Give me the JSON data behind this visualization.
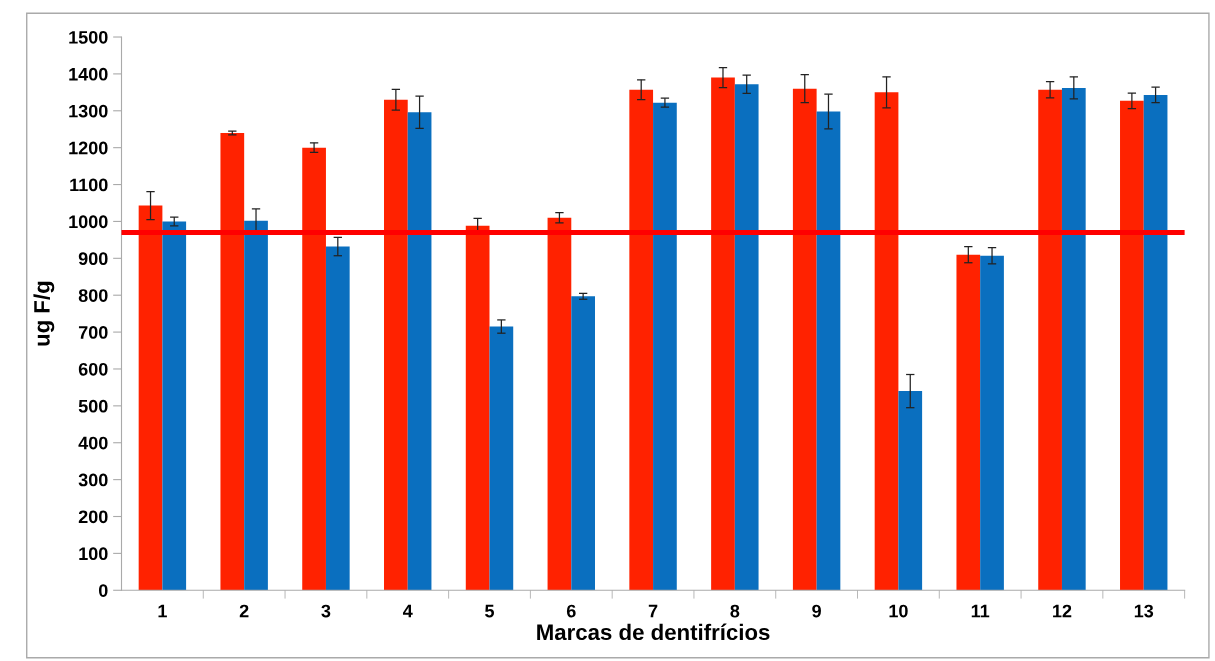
{
  "chart_data": {
    "type": "bar",
    "xlabel": "Marcas de dentifrícios",
    "ylabel": "ug F/g",
    "categories": [
      "1",
      "2",
      "3",
      "4",
      "5",
      "6",
      "7",
      "8",
      "9",
      "10",
      "11",
      "12",
      "13"
    ],
    "series": [
      {
        "color": "#ff2200",
        "values": [
          1043,
          1240,
          1200,
          1330,
          988,
          1010,
          1357,
          1390,
          1360,
          1350,
          910,
          1357,
          1327
        ],
        "errors": [
          38,
          5,
          13,
          28,
          20,
          14,
          27,
          27,
          38,
          42,
          22,
          22,
          21
        ]
      },
      {
        "color": "#0a6fbf",
        "values": [
          1000,
          1002,
          932,
          1296,
          715,
          797,
          1322,
          1372,
          1298,
          540,
          907,
          1362,
          1343
        ],
        "errors": [
          12,
          32,
          25,
          44,
          18,
          8,
          12,
          25,
          47,
          45,
          22,
          30,
          21
        ]
      }
    ],
    "ylim": [
      0,
      1500
    ],
    "yticks": [
      0,
      100,
      200,
      300,
      400,
      500,
      600,
      700,
      800,
      900,
      1000,
      1100,
      1200,
      1300,
      1400,
      1500
    ],
    "ref_lines": [
      {
        "axis": "y",
        "value": 970,
        "color": "#ff0000",
        "line_style": "solid"
      }
    ],
    "grid": false
  }
}
